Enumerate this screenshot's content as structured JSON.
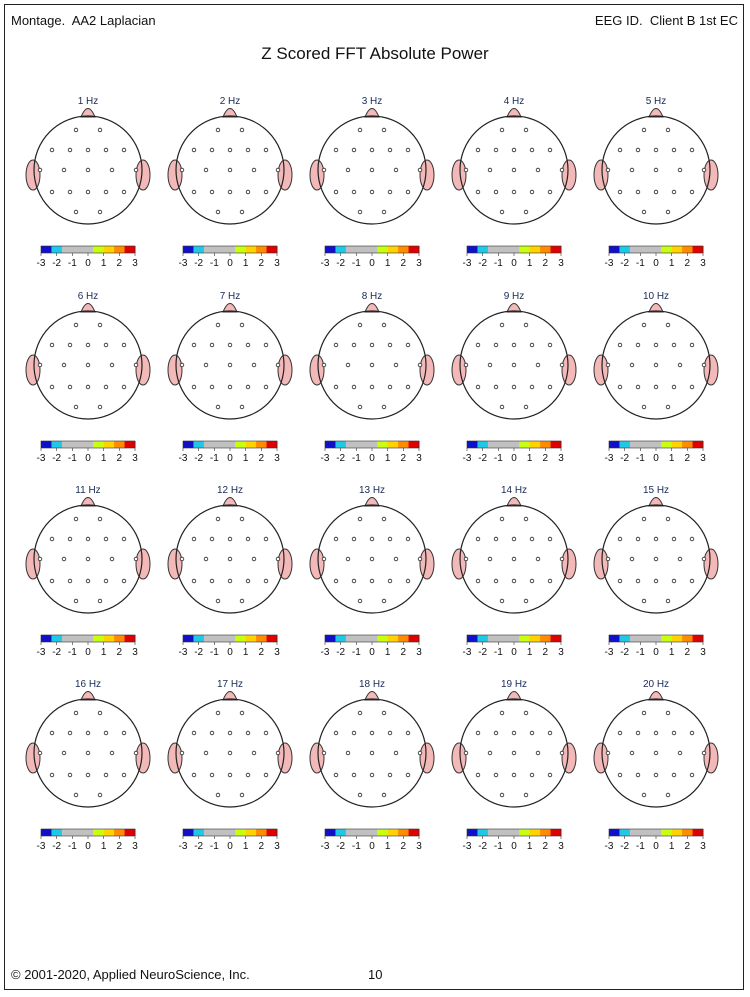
{
  "header": {
    "montage_label": "Montage.",
    "montage_value": "AA2 Laplacian",
    "eeg_label": "EEG ID.",
    "eeg_value": "Client B 1st EC"
  },
  "title": "Z Scored FFT Absolute Power",
  "footer": {
    "copyright": "© 2001-2020, Applied NeuroScience, Inc.",
    "page_number": "10"
  },
  "colorbar": {
    "ticks": [
      "-3",
      "-2",
      "-1",
      "0",
      "1",
      "2",
      "3"
    ],
    "colors": [
      "#1010c8",
      "#20c8e8",
      "#c0c0c0",
      "#c0c0c0",
      "#c0c0c0",
      "#c8ff10",
      "#ffd200",
      "#ff8c00",
      "#e00000"
    ]
  },
  "palette": {
    "neutral": "#c0c0c0",
    "green": "#c8ff10",
    "yellow": "#ffd200",
    "orange": "#ff8c00",
    "red": "#e00000",
    "ear": "#f3b8b8",
    "nose": "#f3b8b8"
  },
  "maps": [
    {
      "label": "1 Hz"
    },
    {
      "label": "2 Hz"
    },
    {
      "label": "3 Hz"
    },
    {
      "label": "4 Hz"
    },
    {
      "label": "5 Hz"
    },
    {
      "label": "6 Hz"
    },
    {
      "label": "7 Hz"
    },
    {
      "label": "8 Hz"
    },
    {
      "label": "9 Hz"
    },
    {
      "label": "10 Hz"
    },
    {
      "label": "11 Hz"
    },
    {
      "label": "12 Hz"
    },
    {
      "label": "13 Hz"
    },
    {
      "label": "14 Hz"
    },
    {
      "label": "15 Hz"
    },
    {
      "label": "16 Hz"
    },
    {
      "label": "17 Hz"
    },
    {
      "label": "18 Hz"
    },
    {
      "label": "19 Hz"
    },
    {
      "label": "20 Hz"
    }
  ]
}
